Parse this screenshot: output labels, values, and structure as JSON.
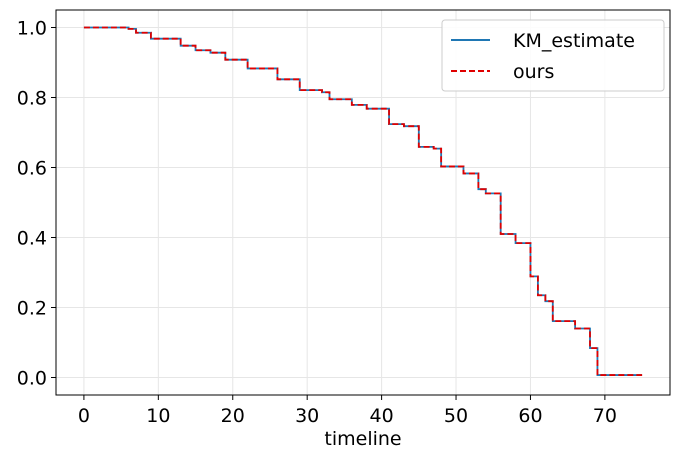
{
  "chart_data": {
    "type": "line",
    "xlabel": "timeline",
    "ylabel": "",
    "xlim": [
      -3.75,
      78.75
    ],
    "ylim": [
      -0.05,
      1.05
    ],
    "xticks": [
      0,
      10,
      20,
      30,
      40,
      50,
      60,
      70
    ],
    "yticks": [
      0.0,
      0.2,
      0.4,
      0.6,
      0.8,
      1.0
    ],
    "ytick_labels": [
      "0.0",
      "0.2",
      "0.4",
      "0.6",
      "0.8",
      "1.0"
    ],
    "grid": true,
    "legend_position": "top-right",
    "step": "post",
    "series": [
      {
        "name": "KM_estimate",
        "color": "#1f77b4",
        "linestyle": "solid",
        "x": [
          0,
          6,
          7,
          9,
          13,
          15,
          17,
          19,
          22,
          26,
          29,
          32,
          33,
          36,
          38,
          41,
          43,
          45,
          47,
          48,
          51,
          53,
          54,
          56,
          58,
          60,
          61,
          62,
          63,
          66,
          68,
          69,
          75
        ],
        "y": [
          1.0,
          0.996,
          0.985,
          0.968,
          0.948,
          0.935,
          0.928,
          0.908,
          0.883,
          0.852,
          0.821,
          0.815,
          0.795,
          0.779,
          0.768,
          0.724,
          0.718,
          0.659,
          0.654,
          0.603,
          0.583,
          0.538,
          0.526,
          0.41,
          0.384,
          0.289,
          0.235,
          0.218,
          0.161,
          0.14,
          0.084,
          0.007,
          0.007
        ]
      },
      {
        "name": "ours",
        "color": "#e00000",
        "linestyle": "dashed",
        "x": [
          0,
          6,
          7,
          9,
          13,
          15,
          17,
          19,
          22,
          26,
          29,
          32,
          33,
          36,
          38,
          41,
          43,
          45,
          47,
          48,
          51,
          53,
          54,
          56,
          58,
          60,
          61,
          62,
          63,
          66,
          68,
          69,
          75
        ],
        "y": [
          1.0,
          0.996,
          0.985,
          0.968,
          0.948,
          0.935,
          0.928,
          0.908,
          0.883,
          0.852,
          0.821,
          0.815,
          0.795,
          0.779,
          0.768,
          0.724,
          0.718,
          0.659,
          0.654,
          0.603,
          0.583,
          0.538,
          0.526,
          0.41,
          0.384,
          0.289,
          0.235,
          0.218,
          0.161,
          0.14,
          0.084,
          0.007,
          0.007
        ]
      }
    ]
  }
}
